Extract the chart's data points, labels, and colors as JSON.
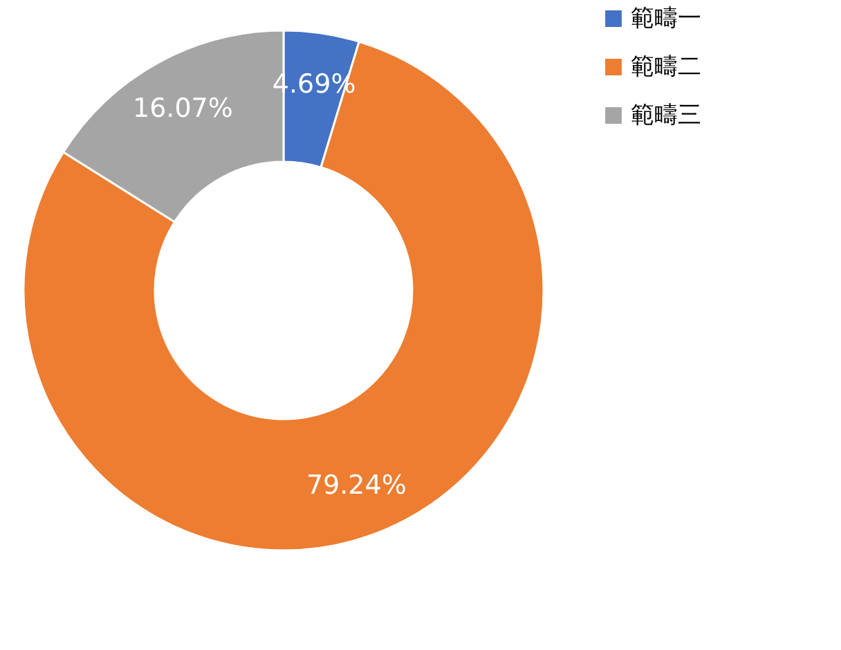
{
  "chart_data": {
    "type": "donut",
    "categories": [
      "範疇一",
      "範疇二",
      "範疇三"
    ],
    "values": [
      4.69,
      79.24,
      16.07
    ],
    "colors": [
      "#4472c4",
      "#ed7d31",
      "#a5a5a5"
    ],
    "value_labels": [
      "4.69%",
      "79.24%",
      "16.07%"
    ],
    "legend": "right"
  }
}
